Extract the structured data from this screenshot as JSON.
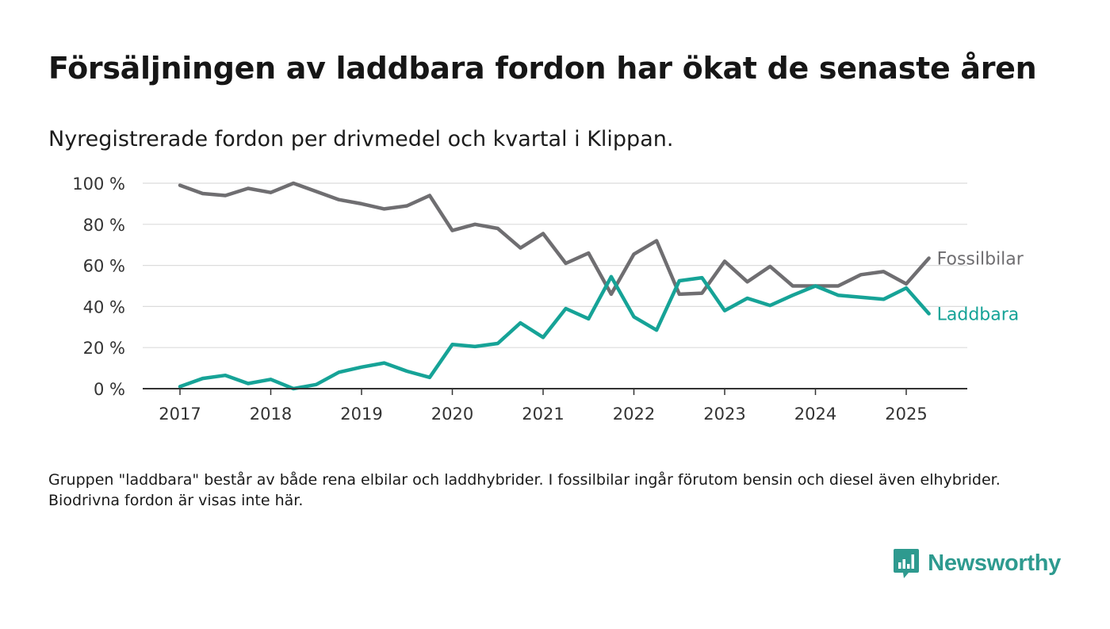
{
  "title": "Försäljningen av laddbara fordon har ökat de senaste åren",
  "subtitle": "Nyregistrerade fordon per drivmedel och kvartal i Klippan.",
  "note": "Gruppen \"laddbara\" består av både rena elbilar och laddhybrider. I fossilbilar ingår förutom bensin och diesel även elhybrider. Biodrivna fordon är visas inte här.",
  "brand": {
    "name": "Newsworthy",
    "icon": "newsworthy-logo-icon"
  },
  "colors": {
    "fossil": "#6f6e71",
    "laddbara": "#16a397",
    "grid": "#dcdcdc",
    "axis": "#333333"
  },
  "chart_data": {
    "type": "line",
    "x_ticks": [
      "2017",
      "2018",
      "2019",
      "2020",
      "2021",
      "2022",
      "2023",
      "2024",
      "2025"
    ],
    "y_ticks": [
      "0 %",
      "20 %",
      "40 %",
      "60 %",
      "80 %",
      "100 %"
    ],
    "ylim": [
      0,
      100
    ],
    "x": [
      "2017 Q1",
      "2017 Q2",
      "2017 Q3",
      "2017 Q4",
      "2018 Q1",
      "2018 Q2",
      "2018 Q3",
      "2018 Q4",
      "2019 Q1",
      "2019 Q2",
      "2019 Q3",
      "2019 Q4",
      "2020 Q1",
      "2020 Q2",
      "2020 Q3",
      "2020 Q4",
      "2021 Q1",
      "2021 Q2",
      "2021 Q3",
      "2021 Q4",
      "2022 Q1",
      "2022 Q2",
      "2022 Q3",
      "2022 Q4",
      "2023 Q1",
      "2023 Q2",
      "2023 Q3",
      "2023 Q4",
      "2024 Q1",
      "2024 Q2",
      "2024 Q3",
      "2024 Q4",
      "2025 Q1",
      "2025 Q2"
    ],
    "grid": true,
    "series": [
      {
        "name": "Fossilbilar",
        "color": "#6f6e71",
        "values": [
          99,
          95,
          94,
          97.5,
          95.5,
          100,
          96,
          92,
          90,
          87.5,
          89,
          94,
          77,
          80,
          78,
          68.5,
          75.5,
          61,
          66,
          46,
          65.5,
          72,
          46,
          46.5,
          62,
          52,
          59.5,
          50,
          50,
          50,
          55.5,
          57,
          51,
          63.5
        ]
      },
      {
        "name": "Laddbara",
        "color": "#16a397",
        "values": [
          1,
          5,
          6.5,
          2.5,
          4.5,
          0,
          2,
          8,
          10.5,
          12.5,
          8.5,
          5.5,
          21.5,
          20.5,
          22,
          32,
          25,
          39,
          34,
          54.5,
          35,
          28.5,
          52.5,
          54,
          38,
          44,
          40.5,
          45.5,
          50,
          45.5,
          44.5,
          43.5,
          49,
          36.5
        ]
      }
    ]
  }
}
